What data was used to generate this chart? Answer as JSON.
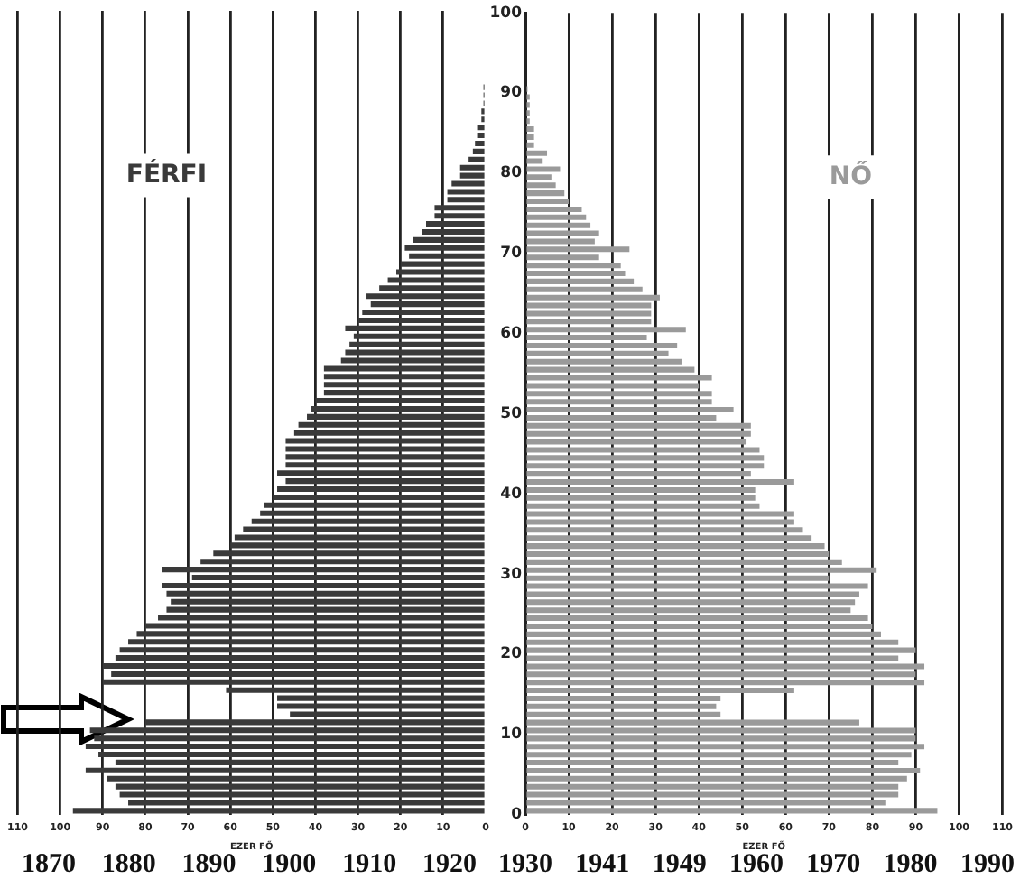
{
  "chart_data": [
    {
      "type": "bar",
      "orientation": "horizontal",
      "title": "FÉRFI",
      "xlabel": "EZER FŐ",
      "xlim": [
        110,
        0
      ],
      "xticks": [
        110,
        100,
        90,
        80,
        70,
        60,
        50,
        40,
        30,
        20,
        10,
        0
      ],
      "ylim": [
        0,
        100
      ],
      "yticks": [
        0,
        10,
        20,
        30,
        40,
        50,
        60,
        70,
        80,
        90,
        100
      ],
      "tick_labels": "x",
      "grid": "x",
      "legend": false,
      "x": [
        0.5,
        1.5,
        2.5,
        3.5,
        4.5,
        5.5,
        6.5,
        7.5,
        8.5,
        9.5,
        10.5,
        11.5,
        12.5,
        13.5,
        14.5,
        15.5,
        16.5,
        17.5,
        18.5,
        19.5,
        20.5,
        21.5,
        22.5,
        23.5,
        24.5,
        25.5,
        26.5,
        27.5,
        28.5,
        29.5,
        30.5,
        31.5,
        32.5,
        33.5,
        34.5,
        35.5,
        36.5,
        37.5,
        38.5,
        39.5,
        40.5,
        41.5,
        42.5,
        43.5,
        44.5,
        45.5,
        46.5,
        47.5,
        48.5,
        49.5,
        50.5,
        51.5,
        52.5,
        53.5,
        54.5,
        55.5,
        56.5,
        57.5,
        58.5,
        59.5,
        60.5,
        61.5,
        62.5,
        63.5,
        64.5,
        65.5,
        66.5,
        67.5,
        68.5,
        69.5,
        70.5,
        71.5,
        72.5,
        73.5,
        74.5,
        75.5,
        76.5,
        77.5,
        78.5,
        79.5,
        80.5,
        81.5,
        82.5,
        83.5,
        84.5,
        85.5,
        86.5,
        87.5,
        88.5,
        89.5,
        90.5,
        91.5,
        92.5,
        93.5,
        94.5,
        95.5,
        96.5,
        97.5,
        98.5,
        99.5
      ],
      "series": [
        {
          "color": "#3a3a3a",
          "values": [
            97,
            84,
            86,
            87,
            89,
            94,
            87,
            91,
            94,
            92,
            93,
            80,
            46,
            49,
            49,
            61,
            90,
            88,
            90,
            87,
            86,
            84,
            82,
            80,
            77,
            75,
            74,
            75,
            76,
            69,
            76,
            67,
            64,
            60,
            59,
            57,
            55,
            53,
            52,
            50,
            49,
            47,
            49,
            47,
            47,
            47,
            47,
            45,
            44,
            42,
            41,
            40,
            38,
            38,
            38,
            38,
            34,
            33,
            32,
            31,
            33,
            30,
            29,
            27,
            28,
            25,
            23,
            21,
            20,
            18,
            19,
            17,
            15,
            14,
            12,
            12,
            9,
            9,
            8,
            6,
            6,
            4,
            3,
            2.5,
            2,
            2,
            1,
            1,
            0.5,
            0.5,
            0.5,
            0,
            0,
            0,
            0,
            0,
            0,
            0,
            0,
            0
          ]
        }
      ],
      "annotations": [
        "1870",
        "1880",
        "1890",
        "1900",
        "1910",
        "1920"
      ]
    },
    {
      "type": "bar",
      "orientation": "horizontal",
      "title": "NŐ",
      "xlabel": "EZER FŐ",
      "xlim": [
        0,
        110
      ],
      "xticks": [
        0,
        10,
        20,
        30,
        40,
        50,
        60,
        70,
        80,
        90,
        100,
        110
      ],
      "ylim": [
        0,
        100
      ],
      "yticks": [
        0,
        10,
        20,
        30,
        40,
        50,
        60,
        70,
        80,
        90,
        100
      ],
      "grid": "x",
      "legend": false,
      "x": [
        0.5,
        1.5,
        2.5,
        3.5,
        4.5,
        5.5,
        6.5,
        7.5,
        8.5,
        9.5,
        10.5,
        11.5,
        12.5,
        13.5,
        14.5,
        15.5,
        16.5,
        17.5,
        18.5,
        19.5,
        20.5,
        21.5,
        22.5,
        23.5,
        24.5,
        25.5,
        26.5,
        27.5,
        28.5,
        29.5,
        30.5,
        31.5,
        32.5,
        33.5,
        34.5,
        35.5,
        36.5,
        37.5,
        38.5,
        39.5,
        40.5,
        41.5,
        42.5,
        43.5,
        44.5,
        45.5,
        46.5,
        47.5,
        48.5,
        49.5,
        50.5,
        51.5,
        52.5,
        53.5,
        54.5,
        55.5,
        56.5,
        57.5,
        58.5,
        59.5,
        60.5,
        61.5,
        62.5,
        63.5,
        64.5,
        65.5,
        66.5,
        67.5,
        68.5,
        69.5,
        70.5,
        71.5,
        72.5,
        73.5,
        74.5,
        75.5,
        76.5,
        77.5,
        78.5,
        79.5,
        80.5,
        81.5,
        82.5,
        83.5,
        84.5,
        85.5,
        86.5,
        87.5,
        88.5,
        89.5,
        90.5,
        91.5,
        92.5,
        93.5,
        94.5,
        95.5,
        96.5,
        97.5,
        98.5,
        99.5
      ],
      "series": [
        {
          "color": "#9a9a9a",
          "values": [
            95,
            83,
            86,
            86,
            88,
            91,
            86,
            89,
            92,
            90,
            90,
            77,
            45,
            44,
            45,
            62,
            92,
            90,
            92,
            86,
            90,
            86,
            82,
            80,
            79,
            75,
            76,
            77,
            79,
            70,
            81,
            73,
            70,
            69,
            66,
            64,
            62,
            62,
            54,
            53,
            53,
            62,
            52,
            55,
            55,
            54,
            51,
            52,
            52,
            44,
            48,
            43,
            43,
            40,
            43,
            39,
            36,
            33,
            35,
            28,
            37,
            29,
            29,
            29,
            31,
            27,
            25,
            23,
            22,
            17,
            24,
            16,
            17,
            15,
            14,
            13,
            10,
            9,
            7,
            6,
            8,
            4,
            5,
            2,
            2,
            2,
            1,
            1,
            1,
            1,
            0.5,
            0,
            0,
            0,
            0,
            0,
            0,
            0,
            0,
            0
          ]
        }
      ],
      "annotations": [
        "1930",
        "1941",
        "1949",
        "1960",
        "1970",
        "1980",
        "1990"
      ]
    }
  ]
}
